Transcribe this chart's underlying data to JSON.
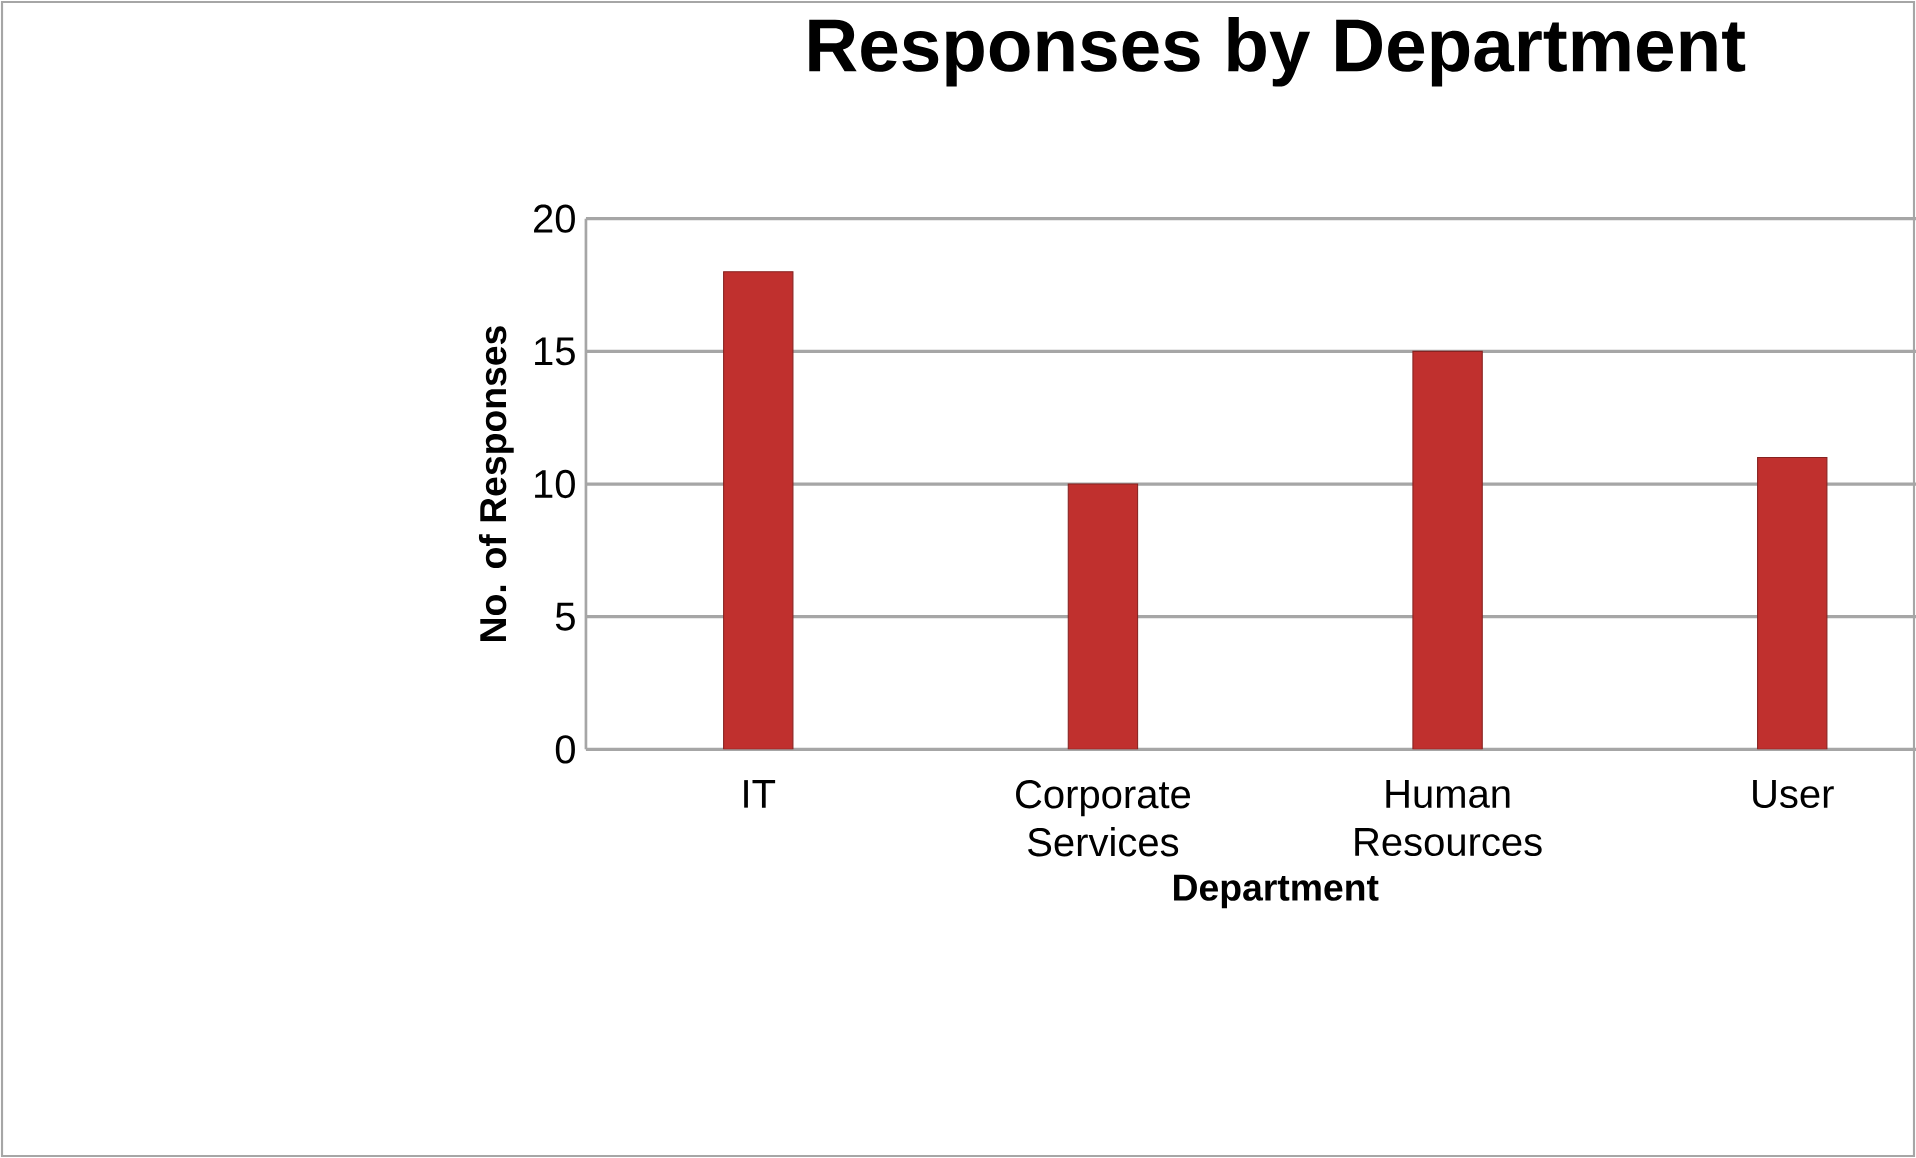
{
  "chart_data": {
    "type": "bar",
    "title": "Responses by Department",
    "xlabel": "Department",
    "ylabel": "No. of Responses",
    "categories": [
      "IT",
      "Corporate Services",
      "Human Resources",
      "User"
    ],
    "values": [
      18,
      10,
      15,
      11
    ],
    "color": "#c0302e",
    "ylim": [
      0,
      20
    ],
    "yticks": [
      0,
      5,
      10,
      15,
      20
    ],
    "grid": "y"
  }
}
